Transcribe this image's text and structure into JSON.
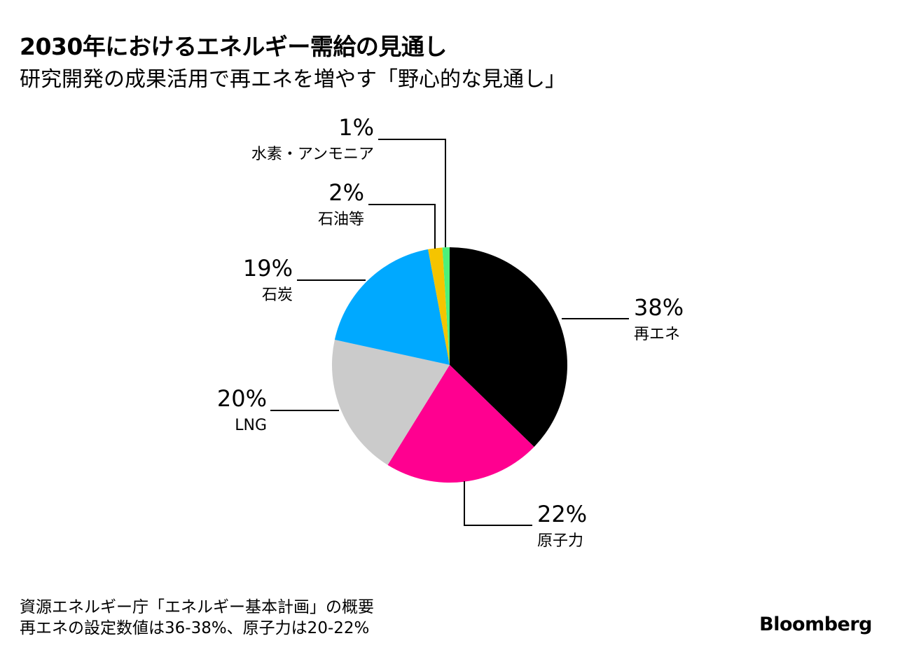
{
  "header": {
    "title": "2030年におけるエネルギー需給の見通し",
    "subtitle": "研究開発の成果活用で再エネを増やす「野心的な見通し」"
  },
  "chart_data": {
    "type": "pie",
    "slices": [
      {
        "label": "再エネ",
        "value": 38,
        "display": "38%",
        "color": "#000000"
      },
      {
        "label": "原子力",
        "value": 22,
        "display": "22%",
        "color": "#ff0090"
      },
      {
        "label": "LNG",
        "value": 20,
        "display": "20%",
        "color": "#cbcbcb"
      },
      {
        "label": "石炭",
        "value": 19,
        "display": "19%",
        "color": "#00a9ff"
      },
      {
        "label": "石油等",
        "value": 2,
        "display": "2%",
        "color": "#f5c400"
      },
      {
        "label": "水素・アンモニア",
        "value": 1,
        "display": "1%",
        "color": "#4df07a"
      }
    ]
  },
  "footer": {
    "note_line1": "資源エネルギー庁「エネルギー基本計画」の概要",
    "note_line2": "再エネの設定数値は36-38%、原子力は20-22%"
  },
  "brand": {
    "logo": "Bloomberg"
  }
}
